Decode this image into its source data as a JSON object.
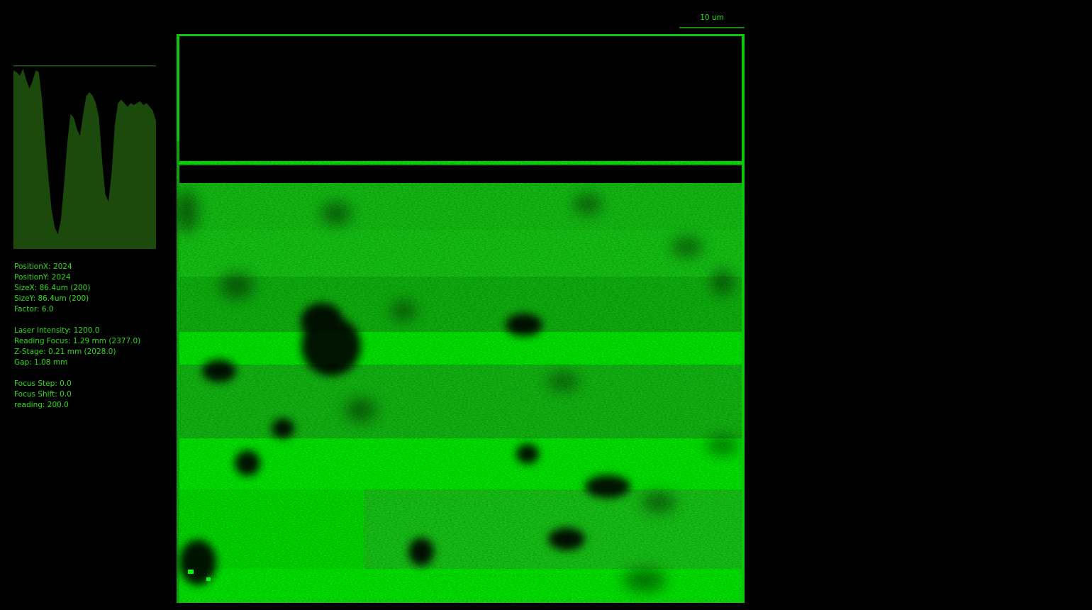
{
  "scale_bar": {
    "label": "10 um"
  },
  "info": {
    "position_x": "PositionX: 2024",
    "position_y": "PositionY: 2024",
    "size_x": "SizeX: 86.4um (200)",
    "size_y": "SizeY: 86.4um (200)",
    "factor": "Factor: 6.0",
    "laser_intensity": "Laser Intensity: 1200.0",
    "reading_focus": "Reading Focus: 1.29 mm (2377.0)",
    "z_stage": "Z-Stage: 0.21 mm (2028.0)",
    "gap": "Gap: 1.08 mm",
    "focus_step": "Focus Step: 0.0",
    "focus_shift": "Focus Shift: 0.0",
    "reading": "reading: 200.0"
  },
  "histogram": {
    "color": "#1b4a0c",
    "levels": [
      0.98,
      0.97,
      0.95,
      0.99,
      0.93,
      0.88,
      0.92,
      0.98,
      0.97,
      0.82,
      0.6,
      0.4,
      0.22,
      0.12,
      0.08,
      0.16,
      0.36,
      0.58,
      0.74,
      0.72,
      0.66,
      0.62,
      0.74,
      0.84,
      0.86,
      0.84,
      0.8,
      0.72,
      0.48,
      0.3,
      0.26,
      0.42,
      0.68,
      0.8,
      0.82,
      0.8,
      0.78,
      0.8,
      0.79,
      0.8,
      0.81,
      0.79,
      0.8,
      0.78,
      0.76,
      0.7
    ],
    "dark_color": "#000000"
  },
  "colors": {
    "bright": "#00ff00",
    "medium": "#13e013",
    "dark": "#0a9a0a",
    "frame": "#0fc40f"
  }
}
